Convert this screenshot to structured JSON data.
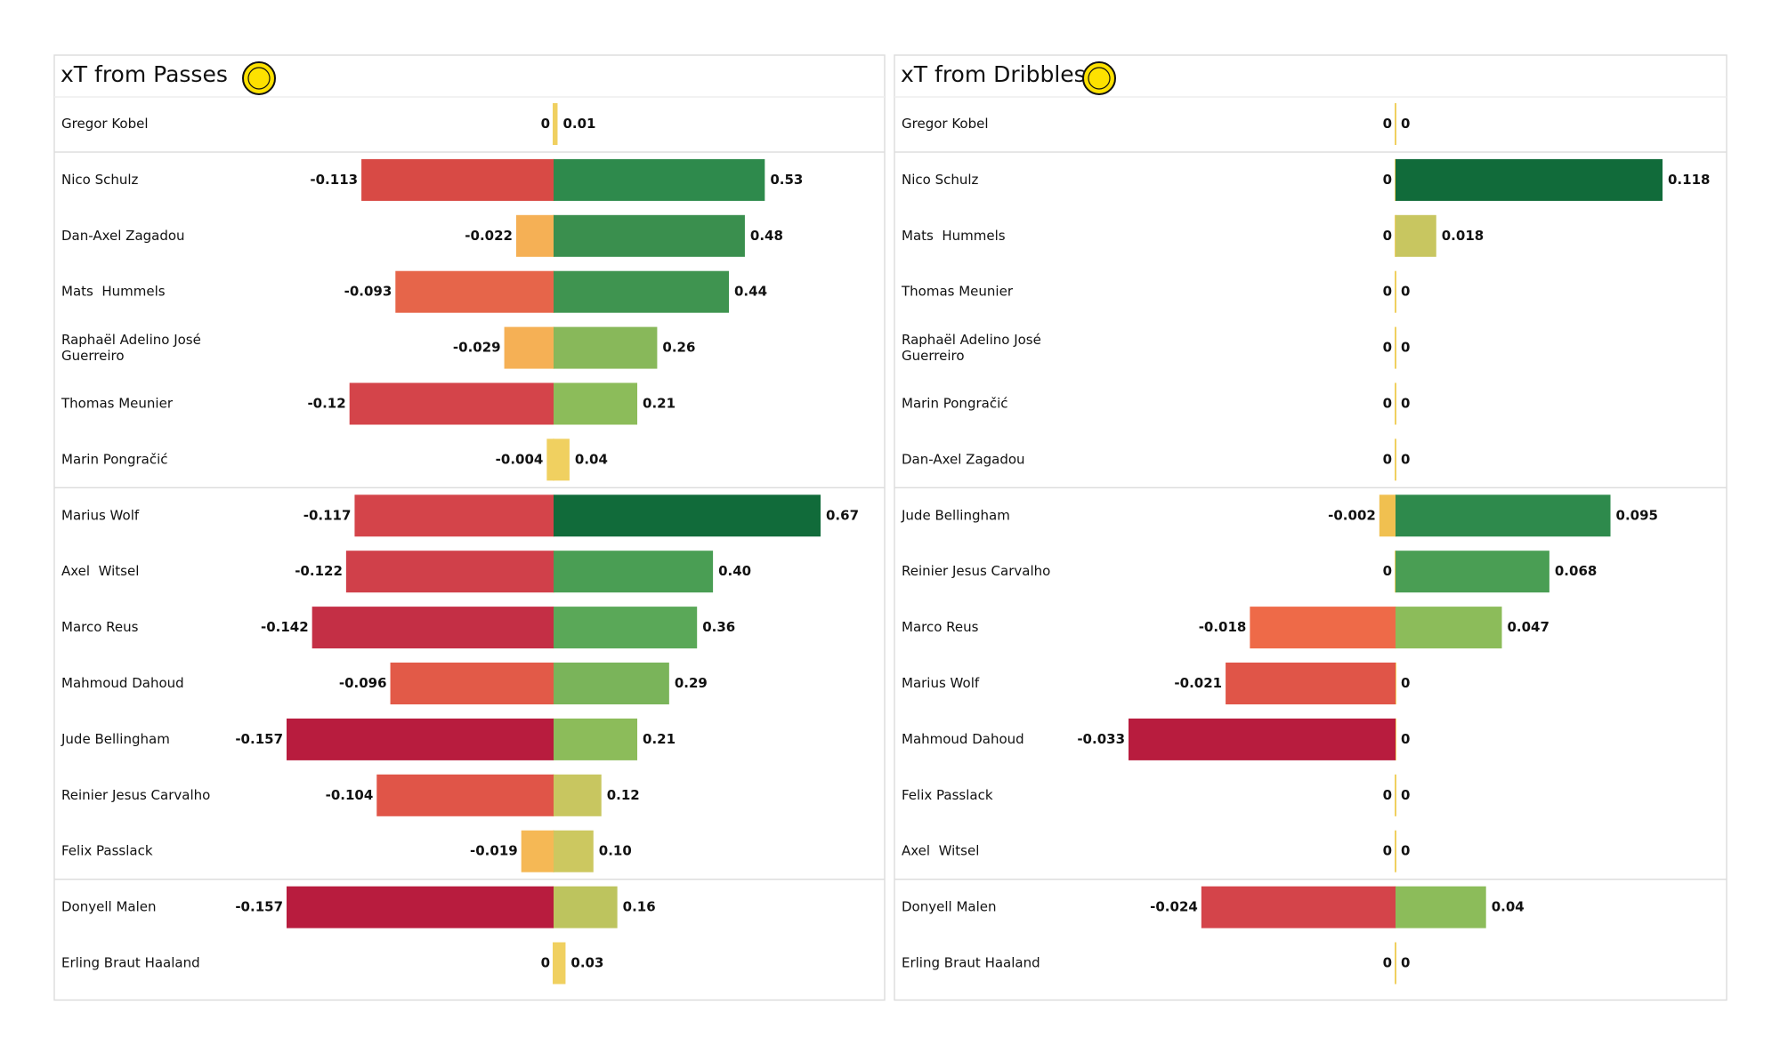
{
  "chart_data": [
    {
      "type": "diverging_bar",
      "title": "xT from Passes",
      "categories": [
        "Gregor Kobel",
        "Nico Schulz",
        "Dan-Axel Zagadou",
        "Mats  Hummels",
        "Raphaël Adelino José\nGuerreiro",
        "Thomas Meunier",
        "Marin Pongračić",
        "Marius Wolf",
        "Axel  Witsel",
        "Marco Reus",
        "Mahmoud Dahoud",
        "Jude Bellingham",
        "Reinier Jesus Carvalho",
        "Felix Passlack",
        "Donyell Malen",
        "Erling Braut Haaland"
      ],
      "series": [
        {
          "values": [
            0,
            -0.113,
            -0.022,
            -0.093,
            -0.029,
            -0.12,
            -0.004,
            -0.117,
            -0.122,
            -0.142,
            -0.096,
            -0.157,
            -0.104,
            -0.019,
            -0.157,
            0
          ],
          "colors": [
            "#f0d060",
            "#d84a45",
            "#f5b055",
            "#e6654a",
            "#f5b055",
            "#d4444a",
            "#f0d060",
            "#d4444a",
            "#d0404a",
            "#c42f45",
            "#e25a48",
            "#b81c3e",
            "#e05548",
            "#f5b855",
            "#b81c3e",
            "#f0d060"
          ]
        },
        {
          "values": [
            0.01,
            0.53,
            0.48,
            0.44,
            0.26,
            0.21,
            0.04,
            0.67,
            0.4,
            0.36,
            0.29,
            0.21,
            0.12,
            0.1,
            0.16,
            0.03
          ],
          "value_labels": [
            "0.01",
            "0.53",
            "0.48",
            "0.44",
            "0.26",
            "0.21",
            "0.04",
            "0.67",
            "0.40",
            "0.36",
            "0.29",
            "0.21",
            "0.12",
            "0.10",
            "0.16",
            "0.03"
          ],
          "colors": [
            "#f0d060",
            "#2e8a4c",
            "#3a8f4e",
            "#3f9450",
            "#88b85a",
            "#8cbc5a",
            "#f0d060",
            "#116b3a",
            "#4a9e54",
            "#5aa858",
            "#7ab45a",
            "#8cbc5a",
            "#c8c660",
            "#ccc860",
            "#bdc45e",
            "#f0d060"
          ]
        }
      ]
    },
    {
      "type": "diverging_bar",
      "title": "xT from Dribbles",
      "categories": [
        "Gregor Kobel",
        "Nico Schulz",
        "Mats  Hummels",
        "Thomas Meunier",
        "Raphaël Adelino José\nGuerreiro",
        "Marin Pongračić",
        "Dan-Axel Zagadou",
        "Jude Bellingham",
        "Reinier Jesus Carvalho",
        "Marco Reus",
        "Marius Wolf",
        "Mahmoud Dahoud",
        "Felix Passlack",
        "Axel  Witsel",
        "Donyell Malen",
        "Erling Braut Haaland"
      ],
      "series": [
        {
          "values": [
            0,
            0,
            0,
            0,
            0,
            0,
            0,
            -0.002,
            0,
            -0.018,
            -0.021,
            -0.033,
            0,
            0,
            -0.024,
            0
          ],
          "colors": [
            "#f0d060",
            "#f0d060",
            "#f0d060",
            "#f0d060",
            "#f0d060",
            "#f0d060",
            "#f0d060",
            "#f0c050",
            "#f0d060",
            "#ee6a48",
            "#e05548",
            "#b81c3e",
            "#f0d060",
            "#f0d060",
            "#d4444a",
            "#f0d060"
          ]
        },
        {
          "values": [
            0,
            0.118,
            0.018,
            0,
            0,
            0,
            0,
            0.095,
            0.068,
            0.047,
            0,
            0,
            0,
            0,
            0.04,
            0
          ],
          "colors": [
            "#f0d060",
            "#116b3a",
            "#c8c660",
            "#f0d060",
            "#f0d060",
            "#f0d060",
            "#f0d060",
            "#2e8a4c",
            "#4a9e54",
            "#8cbc5a",
            "#f0d060",
            "#f0d060",
            "#f0d060",
            "#f0d060",
            "#8cbc5a",
            "#f0d060"
          ]
        }
      ]
    }
  ]
}
